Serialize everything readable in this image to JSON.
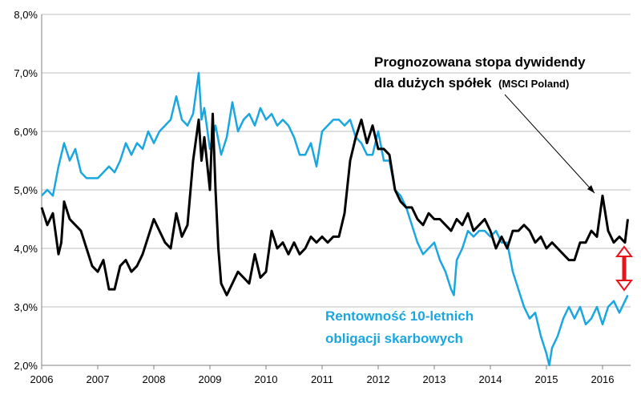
{
  "chart_data": {
    "type": "line",
    "ylim": [
      2.0,
      8.0
    ],
    "xlim": [
      2006.0,
      2016.5
    ],
    "grid": "horizontal",
    "y_ticks": [
      "2,0%",
      "3,0%",
      "4,0%",
      "5,0%",
      "6,0%",
      "7,0%",
      "8,0%"
    ],
    "x_ticks": [
      "2006",
      "2007",
      "2008",
      "2009",
      "2010",
      "2011",
      "2012",
      "2013",
      "2014",
      "2015",
      "2016"
    ],
    "series": [
      {
        "name": "Prognozowana stopa dywidendy dla dużych spółek (MSCI Poland)",
        "color": "#000000",
        "x": [
          2006.0,
          2006.1,
          2006.2,
          2006.3,
          2006.35,
          2006.4,
          2006.5,
          2006.6,
          2006.7,
          2006.8,
          2006.9,
          2007.0,
          2007.1,
          2007.2,
          2007.3,
          2007.4,
          2007.5,
          2007.6,
          2007.7,
          2007.8,
          2007.9,
          2008.0,
          2008.1,
          2008.2,
          2008.3,
          2008.4,
          2008.5,
          2008.6,
          2008.7,
          2008.8,
          2008.85,
          2008.9,
          2009.0,
          2009.05,
          2009.1,
          2009.15,
          2009.2,
          2009.3,
          2009.4,
          2009.5,
          2009.6,
          2009.7,
          2009.8,
          2009.9,
          2010.0,
          2010.1,
          2010.2,
          2010.3,
          2010.4,
          2010.5,
          2010.6,
          2010.7,
          2010.8,
          2010.9,
          2011.0,
          2011.1,
          2011.2,
          2011.3,
          2011.4,
          2011.5,
          2011.6,
          2011.7,
          2011.8,
          2011.9,
          2012.0,
          2012.1,
          2012.2,
          2012.3,
          2012.4,
          2012.5,
          2012.6,
          2012.7,
          2012.8,
          2012.9,
          2013.0,
          2013.1,
          2013.2,
          2013.3,
          2013.4,
          2013.5,
          2013.6,
          2013.7,
          2013.8,
          2013.9,
          2014.0,
          2014.1,
          2014.2,
          2014.3,
          2014.4,
          2014.5,
          2014.6,
          2014.7,
          2014.8,
          2014.9,
          2015.0,
          2015.1,
          2015.2,
          2015.3,
          2015.4,
          2015.5,
          2015.6,
          2015.7,
          2015.8,
          2015.9,
          2016.0,
          2016.1,
          2016.2,
          2016.3,
          2016.4,
          2016.45
        ],
        "y": [
          4.7,
          4.4,
          4.6,
          3.9,
          4.1,
          4.8,
          4.5,
          4.4,
          4.3,
          4.0,
          3.7,
          3.6,
          3.8,
          3.3,
          3.3,
          3.7,
          3.8,
          3.6,
          3.7,
          3.9,
          4.2,
          4.5,
          4.3,
          4.1,
          4.0,
          4.6,
          4.2,
          4.4,
          5.5,
          6.2,
          5.5,
          5.9,
          5.0,
          6.3,
          5.0,
          4.0,
          3.4,
          3.2,
          3.4,
          3.6,
          3.5,
          3.4,
          3.9,
          3.5,
          3.6,
          4.3,
          4.0,
          4.1,
          3.9,
          4.1,
          3.9,
          4.0,
          4.2,
          4.1,
          4.2,
          4.1,
          4.2,
          4.2,
          4.6,
          5.5,
          5.9,
          6.2,
          5.8,
          6.1,
          5.7,
          5.7,
          5.6,
          5.0,
          4.8,
          4.7,
          4.7,
          4.5,
          4.4,
          4.6,
          4.5,
          4.5,
          4.4,
          4.3,
          4.5,
          4.4,
          4.6,
          4.3,
          4.4,
          4.5,
          4.3,
          4.0,
          4.2,
          4.0,
          4.3,
          4.3,
          4.4,
          4.3,
          4.1,
          4.2,
          4.0,
          4.1,
          4.0,
          3.9,
          3.8,
          3.8,
          4.1,
          4.1,
          4.3,
          4.2,
          4.9,
          4.3,
          4.1,
          4.2,
          4.1,
          4.5
        ]
      },
      {
        "name": "Rentowność 10-letnich obligacji skarbowych",
        "color": "#1aa7e0",
        "x": [
          2006.0,
          2006.1,
          2006.2,
          2006.3,
          2006.4,
          2006.5,
          2006.6,
          2006.7,
          2006.8,
          2006.9,
          2007.0,
          2007.1,
          2007.2,
          2007.3,
          2007.4,
          2007.5,
          2007.6,
          2007.7,
          2007.8,
          2007.9,
          2008.0,
          2008.1,
          2008.2,
          2008.3,
          2008.4,
          2008.5,
          2008.6,
          2008.7,
          2008.8,
          2008.85,
          2008.9,
          2009.0,
          2009.1,
          2009.2,
          2009.3,
          2009.4,
          2009.5,
          2009.6,
          2009.7,
          2009.8,
          2009.9,
          2010.0,
          2010.1,
          2010.2,
          2010.3,
          2010.4,
          2010.5,
          2010.6,
          2010.7,
          2010.8,
          2010.9,
          2011.0,
          2011.1,
          2011.2,
          2011.3,
          2011.4,
          2011.5,
          2011.6,
          2011.7,
          2011.8,
          2011.9,
          2012.0,
          2012.1,
          2012.2,
          2012.3,
          2012.4,
          2012.5,
          2012.6,
          2012.7,
          2012.8,
          2012.9,
          2013.0,
          2013.1,
          2013.2,
          2013.3,
          2013.35,
          2013.4,
          2013.5,
          2013.6,
          2013.7,
          2013.8,
          2013.9,
          2014.0,
          2014.1,
          2014.2,
          2014.3,
          2014.4,
          2014.5,
          2014.6,
          2014.7,
          2014.8,
          2014.9,
          2015.0,
          2015.05,
          2015.1,
          2015.2,
          2015.3,
          2015.4,
          2015.5,
          2015.6,
          2015.7,
          2015.8,
          2015.9,
          2016.0,
          2016.1,
          2016.2,
          2016.3,
          2016.4,
          2016.45
        ],
        "y": [
          4.9,
          5.0,
          4.9,
          5.4,
          5.8,
          5.5,
          5.7,
          5.3,
          5.2,
          5.2,
          5.2,
          5.3,
          5.4,
          5.3,
          5.5,
          5.8,
          5.6,
          5.8,
          5.7,
          6.0,
          5.8,
          6.0,
          6.1,
          6.2,
          6.6,
          6.2,
          6.1,
          6.3,
          7.0,
          6.2,
          6.4,
          5.7,
          6.1,
          5.6,
          5.9,
          6.5,
          6.0,
          6.2,
          6.3,
          6.1,
          6.4,
          6.2,
          6.3,
          6.1,
          6.2,
          6.1,
          5.9,
          5.6,
          5.6,
          5.8,
          5.4,
          6.0,
          6.1,
          6.2,
          6.2,
          6.1,
          6.2,
          5.9,
          5.8,
          5.6,
          5.6,
          6.0,
          5.5,
          5.5,
          5.0,
          4.9,
          4.7,
          4.4,
          4.1,
          3.9,
          4.0,
          4.1,
          3.8,
          3.6,
          3.3,
          3.2,
          3.8,
          4.0,
          4.3,
          4.2,
          4.3,
          4.3,
          4.2,
          4.3,
          4.1,
          4.1,
          3.6,
          3.3,
          3.0,
          2.8,
          2.9,
          2.5,
          2.2,
          2.0,
          2.3,
          2.5,
          2.8,
          3.0,
          2.8,
          3.0,
          2.7,
          2.8,
          3.0,
          2.7,
          3.0,
          3.1,
          2.9,
          3.1,
          3.2
        ]
      }
    ],
    "annotations": {
      "black_line1": "Prognozowana stopa dywidendy",
      "black_line2": "dla dużych spółek",
      "black_small": "(MSCI Poland)",
      "blue_line1": "Rentowność 10-letnich",
      "blue_line2": "obligacji skarbowych"
    },
    "colors": {
      "blue": "#1aa7e0",
      "black": "#000000",
      "red_arrow": "#e8141a",
      "grid": "#bfbfbf",
      "axis": "#808080"
    }
  }
}
